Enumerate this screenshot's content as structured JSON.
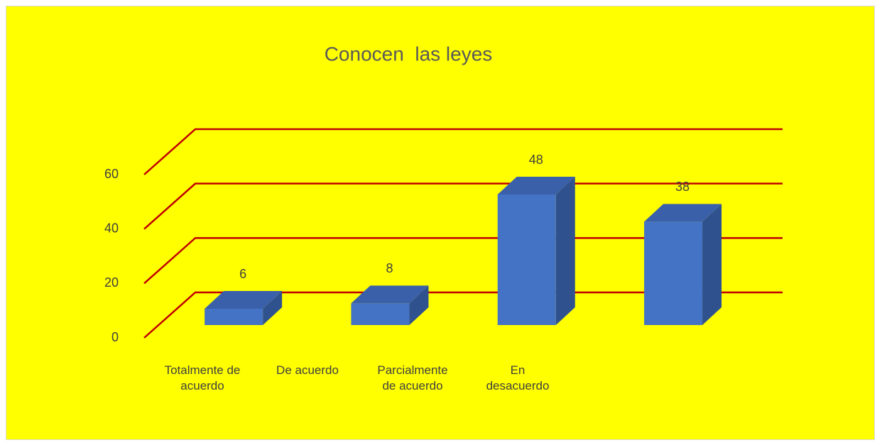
{
  "chart_data": {
    "type": "bar3d",
    "title": "Conocen  las leyes",
    "categories": [
      "Totalmente de acuerdo",
      "De acuerdo",
      "Parcialmente de acuerdo",
      "En desacuerdo"
    ],
    "values": [
      6,
      8,
      48,
      38
    ],
    "color": "#4472c4",
    "grid_color": "#c00000",
    "ylim": [
      0,
      60
    ],
    "yticks": [
      0,
      20,
      40,
      60
    ],
    "grid": true
  }
}
